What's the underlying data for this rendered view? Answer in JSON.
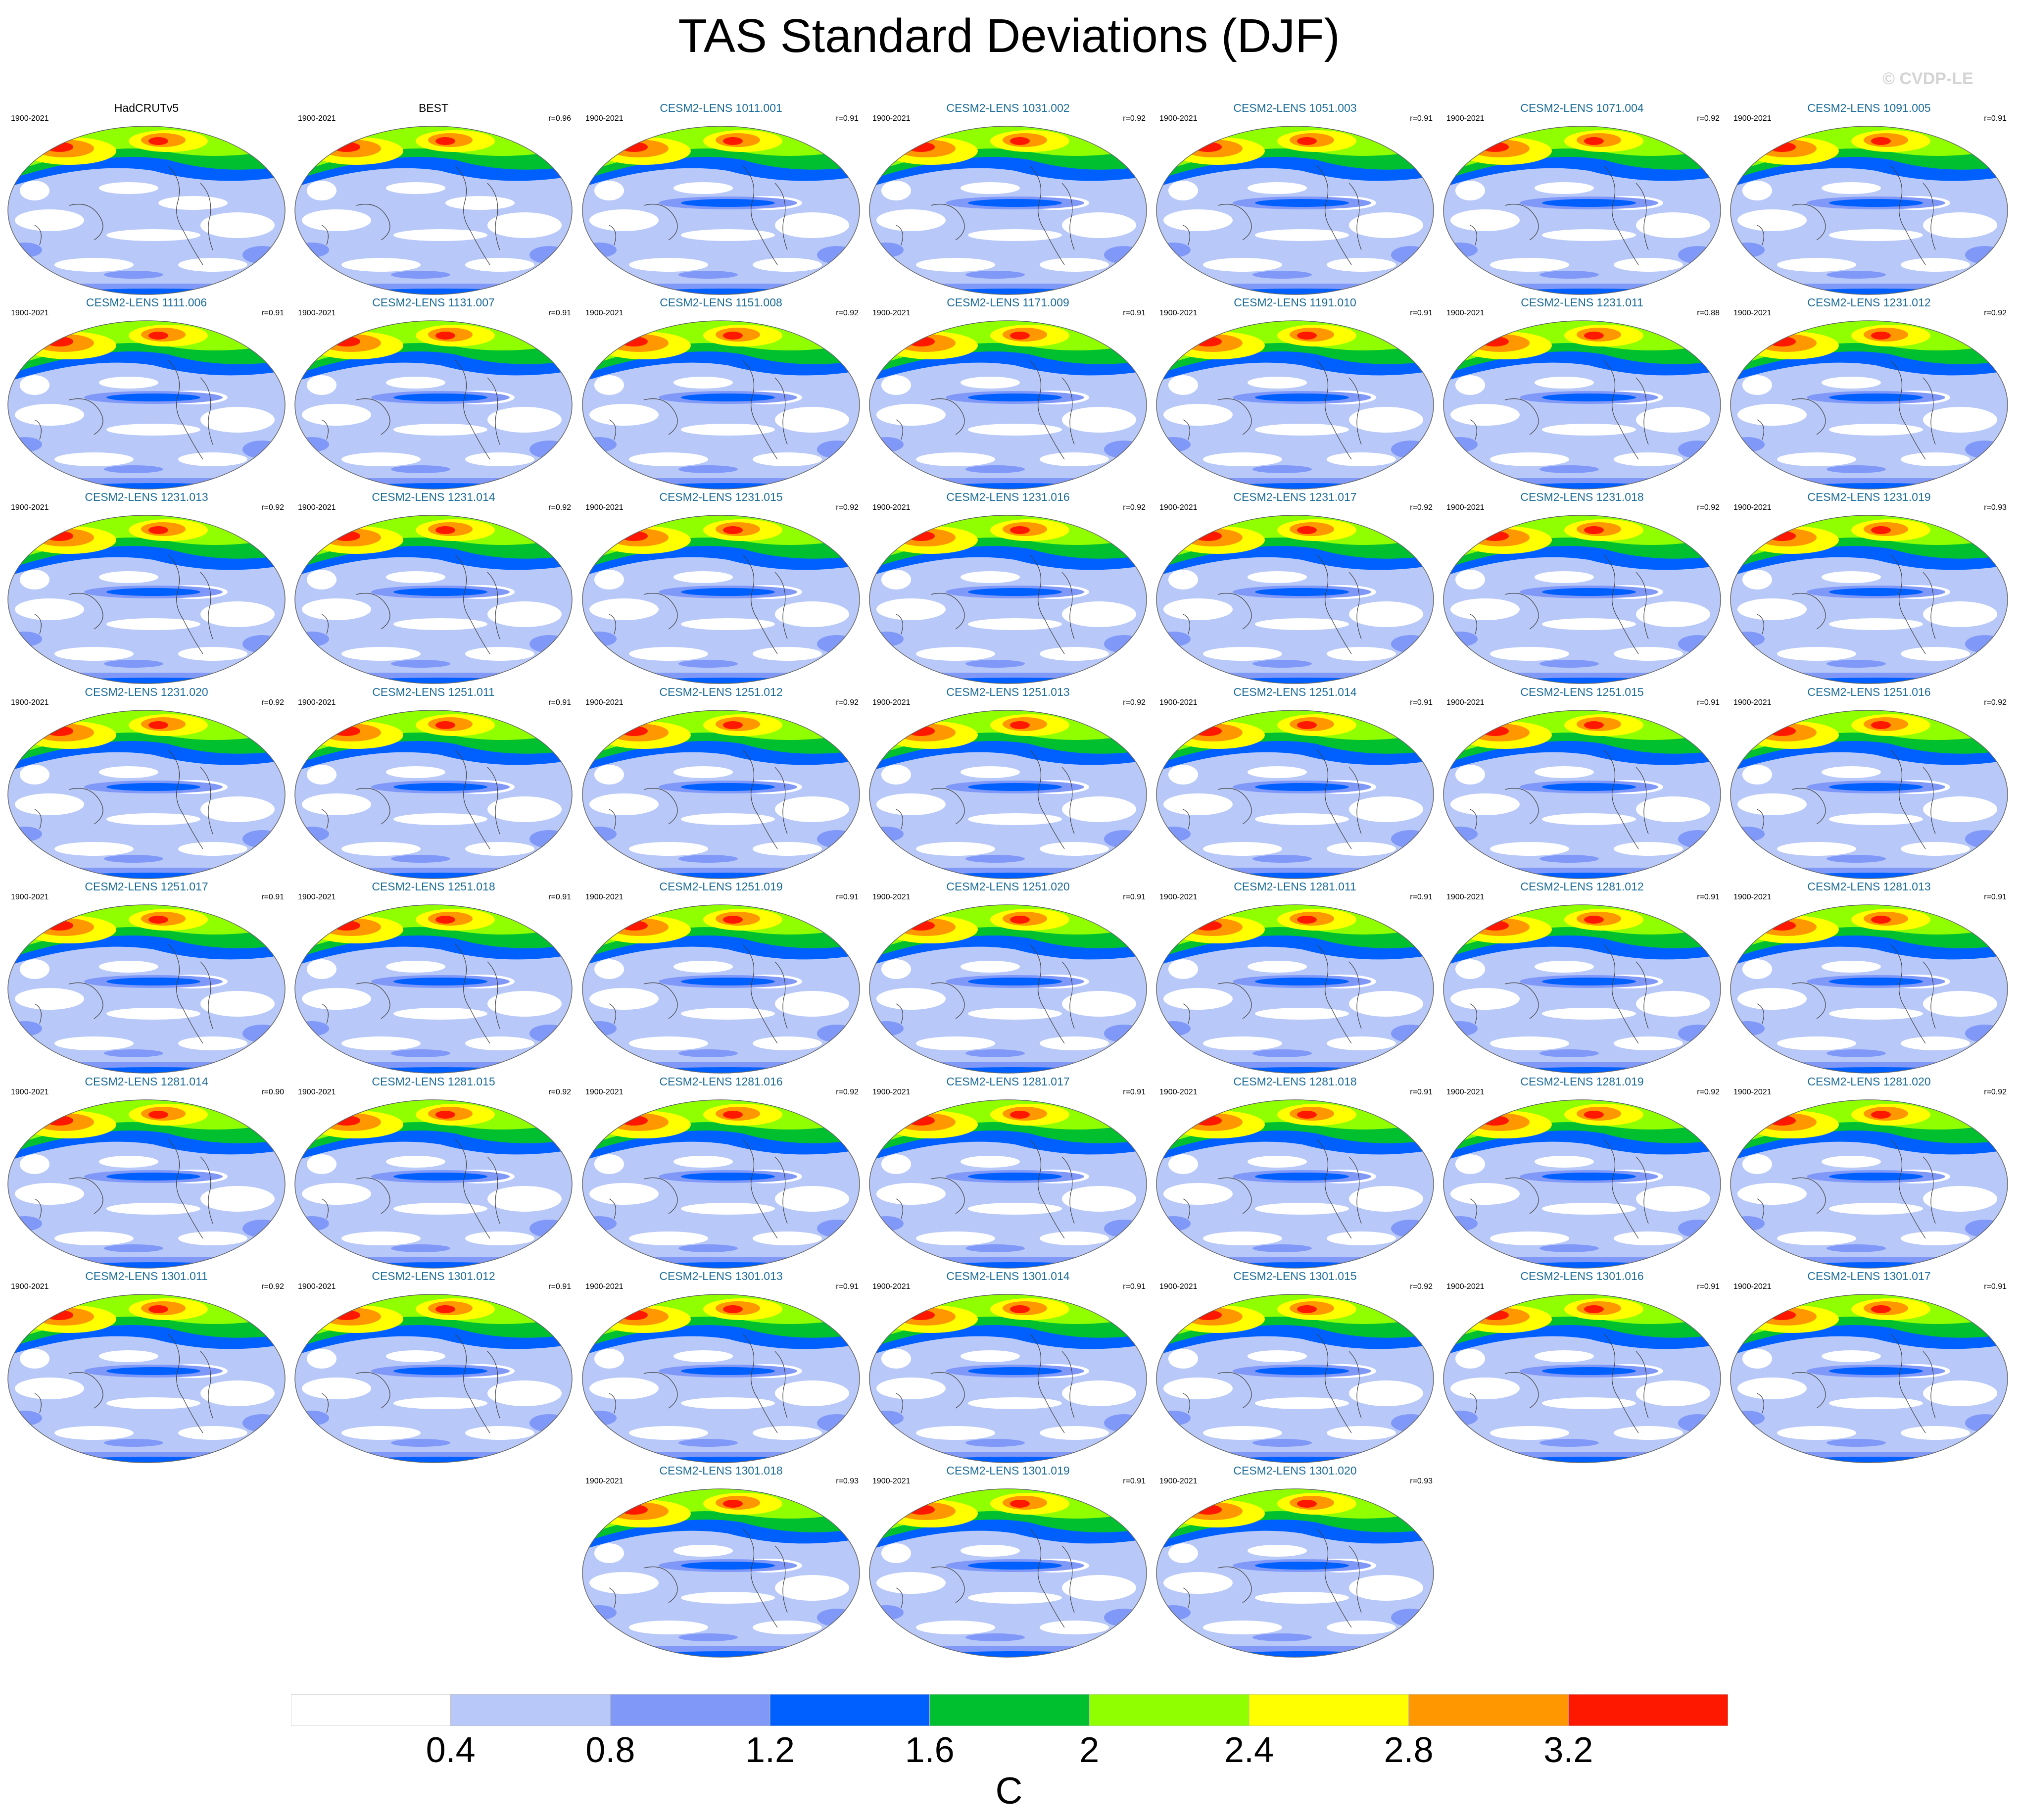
{
  "title": "TAS Standard Deviations (DJF)",
  "watermark": "© CVDP-LE",
  "chart_data": {
    "type": "map-panel-grid",
    "variable": "TAS",
    "statistic": "Standard Deviations",
    "season": "DJF",
    "units": "C",
    "colorbar": {
      "ticks": [
        "0.4",
        "0.8",
        "1.2",
        "1.6",
        "2",
        "2.4",
        "2.8",
        "3.2"
      ],
      "bin_colors": [
        "#ffffff",
        "#b8c8f8",
        "#8098f8",
        "#0060ff",
        "#00c030",
        "#90ff00",
        "#ffff00",
        "#ff9800",
        "#ff1800"
      ]
    },
    "palette": {
      "white": "#ffffff",
      "lightblue": "#b8c8f8",
      "midblue": "#8098f8",
      "blue": "#0060ff",
      "green": "#00c030",
      "lime": "#90ff00",
      "yellow": "#ffff00",
      "orange": "#ff9800",
      "red": "#ff1800",
      "obs_title_color": "#000000",
      "model_title_color": "#1a6b9a"
    },
    "panels": [
      {
        "title": "HadCRUTv5",
        "period": "1900-2021",
        "r": "",
        "kind": "obs"
      },
      {
        "title": "BEST",
        "period": "1900-2021",
        "r": "r=0.96",
        "kind": "obs"
      },
      {
        "title": "CESM2-LENS 1011.001",
        "period": "1900-2021",
        "r": "r=0.91",
        "kind": "model"
      },
      {
        "title": "CESM2-LENS 1031.002",
        "period": "1900-2021",
        "r": "r=0.92",
        "kind": "model"
      },
      {
        "title": "CESM2-LENS 1051.003",
        "period": "1900-2021",
        "r": "r=0.91",
        "kind": "model"
      },
      {
        "title": "CESM2-LENS 1071.004",
        "period": "1900-2021",
        "r": "r=0.92",
        "kind": "model"
      },
      {
        "title": "CESM2-LENS 1091.005",
        "period": "1900-2021",
        "r": "r=0.91",
        "kind": "model"
      },
      {
        "title": "CESM2-LENS 1111.006",
        "period": "1900-2021",
        "r": "r=0.91",
        "kind": "model"
      },
      {
        "title": "CESM2-LENS 1131.007",
        "period": "1900-2021",
        "r": "r=0.91",
        "kind": "model"
      },
      {
        "title": "CESM2-LENS 1151.008",
        "period": "1900-2021",
        "r": "r=0.92",
        "kind": "model"
      },
      {
        "title": "CESM2-LENS 1171.009",
        "period": "1900-2021",
        "r": "r=0.91",
        "kind": "model"
      },
      {
        "title": "CESM2-LENS 1191.010",
        "period": "1900-2021",
        "r": "r=0.91",
        "kind": "model"
      },
      {
        "title": "CESM2-LENS 1231.011",
        "period": "1900-2021",
        "r": "r=0.88",
        "kind": "model"
      },
      {
        "title": "CESM2-LENS 1231.012",
        "period": "1900-2021",
        "r": "r=0.92",
        "kind": "model"
      },
      {
        "title": "CESM2-LENS 1231.013",
        "period": "1900-2021",
        "r": "r=0.92",
        "kind": "model"
      },
      {
        "title": "CESM2-LENS 1231.014",
        "period": "1900-2021",
        "r": "r=0.92",
        "kind": "model"
      },
      {
        "title": "CESM2-LENS 1231.015",
        "period": "1900-2021",
        "r": "r=0.92",
        "kind": "model"
      },
      {
        "title": "CESM2-LENS 1231.016",
        "period": "1900-2021",
        "r": "r=0.92",
        "kind": "model"
      },
      {
        "title": "CESM2-LENS 1231.017",
        "period": "1900-2021",
        "r": "r=0.92",
        "kind": "model"
      },
      {
        "title": "CESM2-LENS 1231.018",
        "period": "1900-2021",
        "r": "r=0.92",
        "kind": "model"
      },
      {
        "title": "CESM2-LENS 1231.019",
        "period": "1900-2021",
        "r": "r=0.93",
        "kind": "model"
      },
      {
        "title": "CESM2-LENS 1231.020",
        "period": "1900-2021",
        "r": "r=0.92",
        "kind": "model"
      },
      {
        "title": "CESM2-LENS 1251.011",
        "period": "1900-2021",
        "r": "r=0.91",
        "kind": "model"
      },
      {
        "title": "CESM2-LENS 1251.012",
        "period": "1900-2021",
        "r": "r=0.92",
        "kind": "model"
      },
      {
        "title": "CESM2-LENS 1251.013",
        "period": "1900-2021",
        "r": "r=0.92",
        "kind": "model"
      },
      {
        "title": "CESM2-LENS 1251.014",
        "period": "1900-2021",
        "r": "r=0.91",
        "kind": "model"
      },
      {
        "title": "CESM2-LENS 1251.015",
        "period": "1900-2021",
        "r": "r=0.91",
        "kind": "model"
      },
      {
        "title": "CESM2-LENS 1251.016",
        "period": "1900-2021",
        "r": "r=0.92",
        "kind": "model"
      },
      {
        "title": "CESM2-LENS 1251.017",
        "period": "1900-2021",
        "r": "r=0.91",
        "kind": "model"
      },
      {
        "title": "CESM2-LENS 1251.018",
        "period": "1900-2021",
        "r": "r=0.91",
        "kind": "model"
      },
      {
        "title": "CESM2-LENS 1251.019",
        "period": "1900-2021",
        "r": "r=0.91",
        "kind": "model"
      },
      {
        "title": "CESM2-LENS 1251.020",
        "period": "1900-2021",
        "r": "r=0.91",
        "kind": "model"
      },
      {
        "title": "CESM2-LENS 1281.011",
        "period": "1900-2021",
        "r": "r=0.91",
        "kind": "model"
      },
      {
        "title": "CESM2-LENS 1281.012",
        "period": "1900-2021",
        "r": "r=0.91",
        "kind": "model"
      },
      {
        "title": "CESM2-LENS 1281.013",
        "period": "1900-2021",
        "r": "r=0.91",
        "kind": "model"
      },
      {
        "title": "CESM2-LENS 1281.014",
        "period": "1900-2021",
        "r": "r=0.90",
        "kind": "model"
      },
      {
        "title": "CESM2-LENS 1281.015",
        "period": "1900-2021",
        "r": "r=0.92",
        "kind": "model"
      },
      {
        "title": "CESM2-LENS 1281.016",
        "period": "1900-2021",
        "r": "r=0.92",
        "kind": "model"
      },
      {
        "title": "CESM2-LENS 1281.017",
        "period": "1900-2021",
        "r": "r=0.91",
        "kind": "model"
      },
      {
        "title": "CESM2-LENS 1281.018",
        "period": "1900-2021",
        "r": "r=0.91",
        "kind": "model"
      },
      {
        "title": "CESM2-LENS 1281.019",
        "period": "1900-2021",
        "r": "r=0.92",
        "kind": "model"
      },
      {
        "title": "CESM2-LENS 1281.020",
        "period": "1900-2021",
        "r": "r=0.92",
        "kind": "model"
      },
      {
        "title": "CESM2-LENS 1301.011",
        "period": "1900-2021",
        "r": "r=0.92",
        "kind": "model"
      },
      {
        "title": "CESM2-LENS 1301.012",
        "period": "1900-2021",
        "r": "r=0.91",
        "kind": "model"
      },
      {
        "title": "CESM2-LENS 1301.013",
        "period": "1900-2021",
        "r": "r=0.91",
        "kind": "model"
      },
      {
        "title": "CESM2-LENS 1301.014",
        "period": "1900-2021",
        "r": "r=0.91",
        "kind": "model"
      },
      {
        "title": "CESM2-LENS 1301.015",
        "period": "1900-2021",
        "r": "r=0.92",
        "kind": "model"
      },
      {
        "title": "CESM2-LENS 1301.016",
        "period": "1900-2021",
        "r": "r=0.91",
        "kind": "model"
      },
      {
        "title": "CESM2-LENS 1301.017",
        "period": "1900-2021",
        "r": "r=0.91",
        "kind": "model"
      },
      {
        "title": "CESM2-LENS 1301.018",
        "period": "1900-2021",
        "r": "r=0.93",
        "kind": "model"
      },
      {
        "title": "CESM2-LENS 1301.019",
        "period": "1900-2021",
        "r": "r=0.91",
        "kind": "model"
      },
      {
        "title": "CESM2-LENS 1301.020",
        "period": "1900-2021",
        "r": "r=0.93",
        "kind": "model"
      }
    ]
  }
}
